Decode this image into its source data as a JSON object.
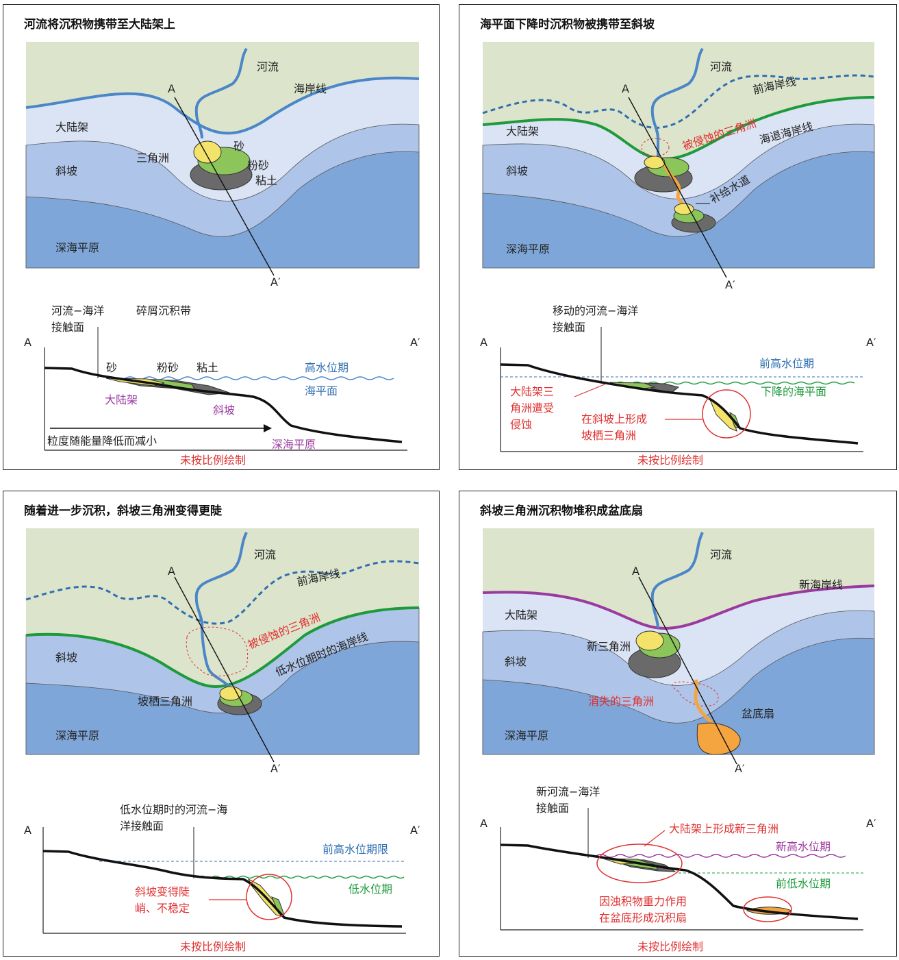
{
  "panels": [
    {
      "title": "河流将沉积物携带至大陆架上",
      "map": {
        "river": "河流",
        "coastline": "海岸线",
        "shelf": "大陆架",
        "delta": "三角洲",
        "sand": "砂",
        "silt": "粉砂",
        "clay": "粘土",
        "slope": "斜坡",
        "abyssal": "深海平原",
        "a": "A",
        "a2": "A′"
      },
      "section": {
        "interface_line1": "河流−海洋",
        "interface_line2": "接触面",
        "clastic": "碎屑沉积带",
        "a": "A",
        "a2": "A′",
        "sand": "砂",
        "silt": "粉砂",
        "clay": "粘土",
        "highstand": "高水位期",
        "sealevel": "海平面",
        "shelf": "大陆架",
        "slope": "斜坡",
        "grain": "粒度随能量降低而减小",
        "abyssal": "深海平原",
        "scale": "未按比例绘制"
      }
    },
    {
      "title": "海平面下降时沉积物被携带至斜坡",
      "map": {
        "river": "河流",
        "old_coast": "前海岸线",
        "eroded": "被侵蚀的三角洲",
        "regress_coast": "海退海岸线",
        "shelf": "大陆架",
        "slope": "斜坡",
        "feeder": "补给水道",
        "abyssal": "深海平原",
        "a": "A",
        "a2": "A′"
      },
      "section": {
        "interface_line1": "移动的河流−海洋",
        "interface_line2": "接触面",
        "a": "A",
        "a2": "A′",
        "old_high": "前高水位期",
        "fall_sea": "下降的海平面",
        "erode_line1": "大陆架三",
        "erode_line2": "角洲遭受",
        "erode_line3": "侵蚀",
        "perch_line1": "在斜坡上形成",
        "perch_line2": "坡栖三角洲",
        "scale": "未按比例绘制"
      }
    },
    {
      "title": "随着进一步沉积，斜坡三角洲变得更陡",
      "map": {
        "river": "河流",
        "old_coast": "前海岸线",
        "eroded": "被侵蚀的三角洲",
        "low_coast": "低水位期时的海岸线",
        "slope": "斜坡",
        "perched": "坡栖三角洲",
        "abyssal": "深海平原",
        "a": "A",
        "a2": "A′"
      },
      "section": {
        "interface_line1": "低水位期时的河流−海",
        "interface_line2": "洋接触面",
        "a": "A",
        "a2": "A′",
        "old_high": "前高水位期限",
        "lowstand": "低水位期",
        "steep_line1": "斜坡变得陡",
        "steep_line2": "峭、不稳定",
        "scale": "未按比例绘制"
      }
    },
    {
      "title": "斜坡三角洲沉积物堆积成盆底扇",
      "map": {
        "river": "河流",
        "new_coast": "新海岸线",
        "shelf": "大陆架",
        "new_delta": "新三角洲",
        "slope": "斜坡",
        "lost_delta": "消失的三角洲",
        "fan": "盆底扇",
        "abyssal": "深海平原",
        "a": "A",
        "a2": "A′"
      },
      "section": {
        "interface_line1": "新河流−海洋",
        "interface_line2": "接触面",
        "a": "A",
        "a2": "A′",
        "new_delta": "大陆架上形成新三角洲",
        "new_high": "新高水位期",
        "old_low": "前低水位期",
        "fan_line1": "因浊积物重力作用",
        "fan_line2": "在盆底形成沉积扇",
        "scale": "未按比例绘制"
      }
    }
  ],
  "colors": {
    "land": "#dde4cc",
    "shelf": "#dbe4f4",
    "slope": "#aec4e8",
    "abyssal": "#7fa6d8",
    "river": "#4a86c8",
    "sand": "#f3e36a",
    "silt": "#8cc65a",
    "clay": "#6a6a6a",
    "feeder": "#f5a540",
    "red": "#e03030",
    "green": "#1e9a3c",
    "purple": "#9a3aa0"
  }
}
